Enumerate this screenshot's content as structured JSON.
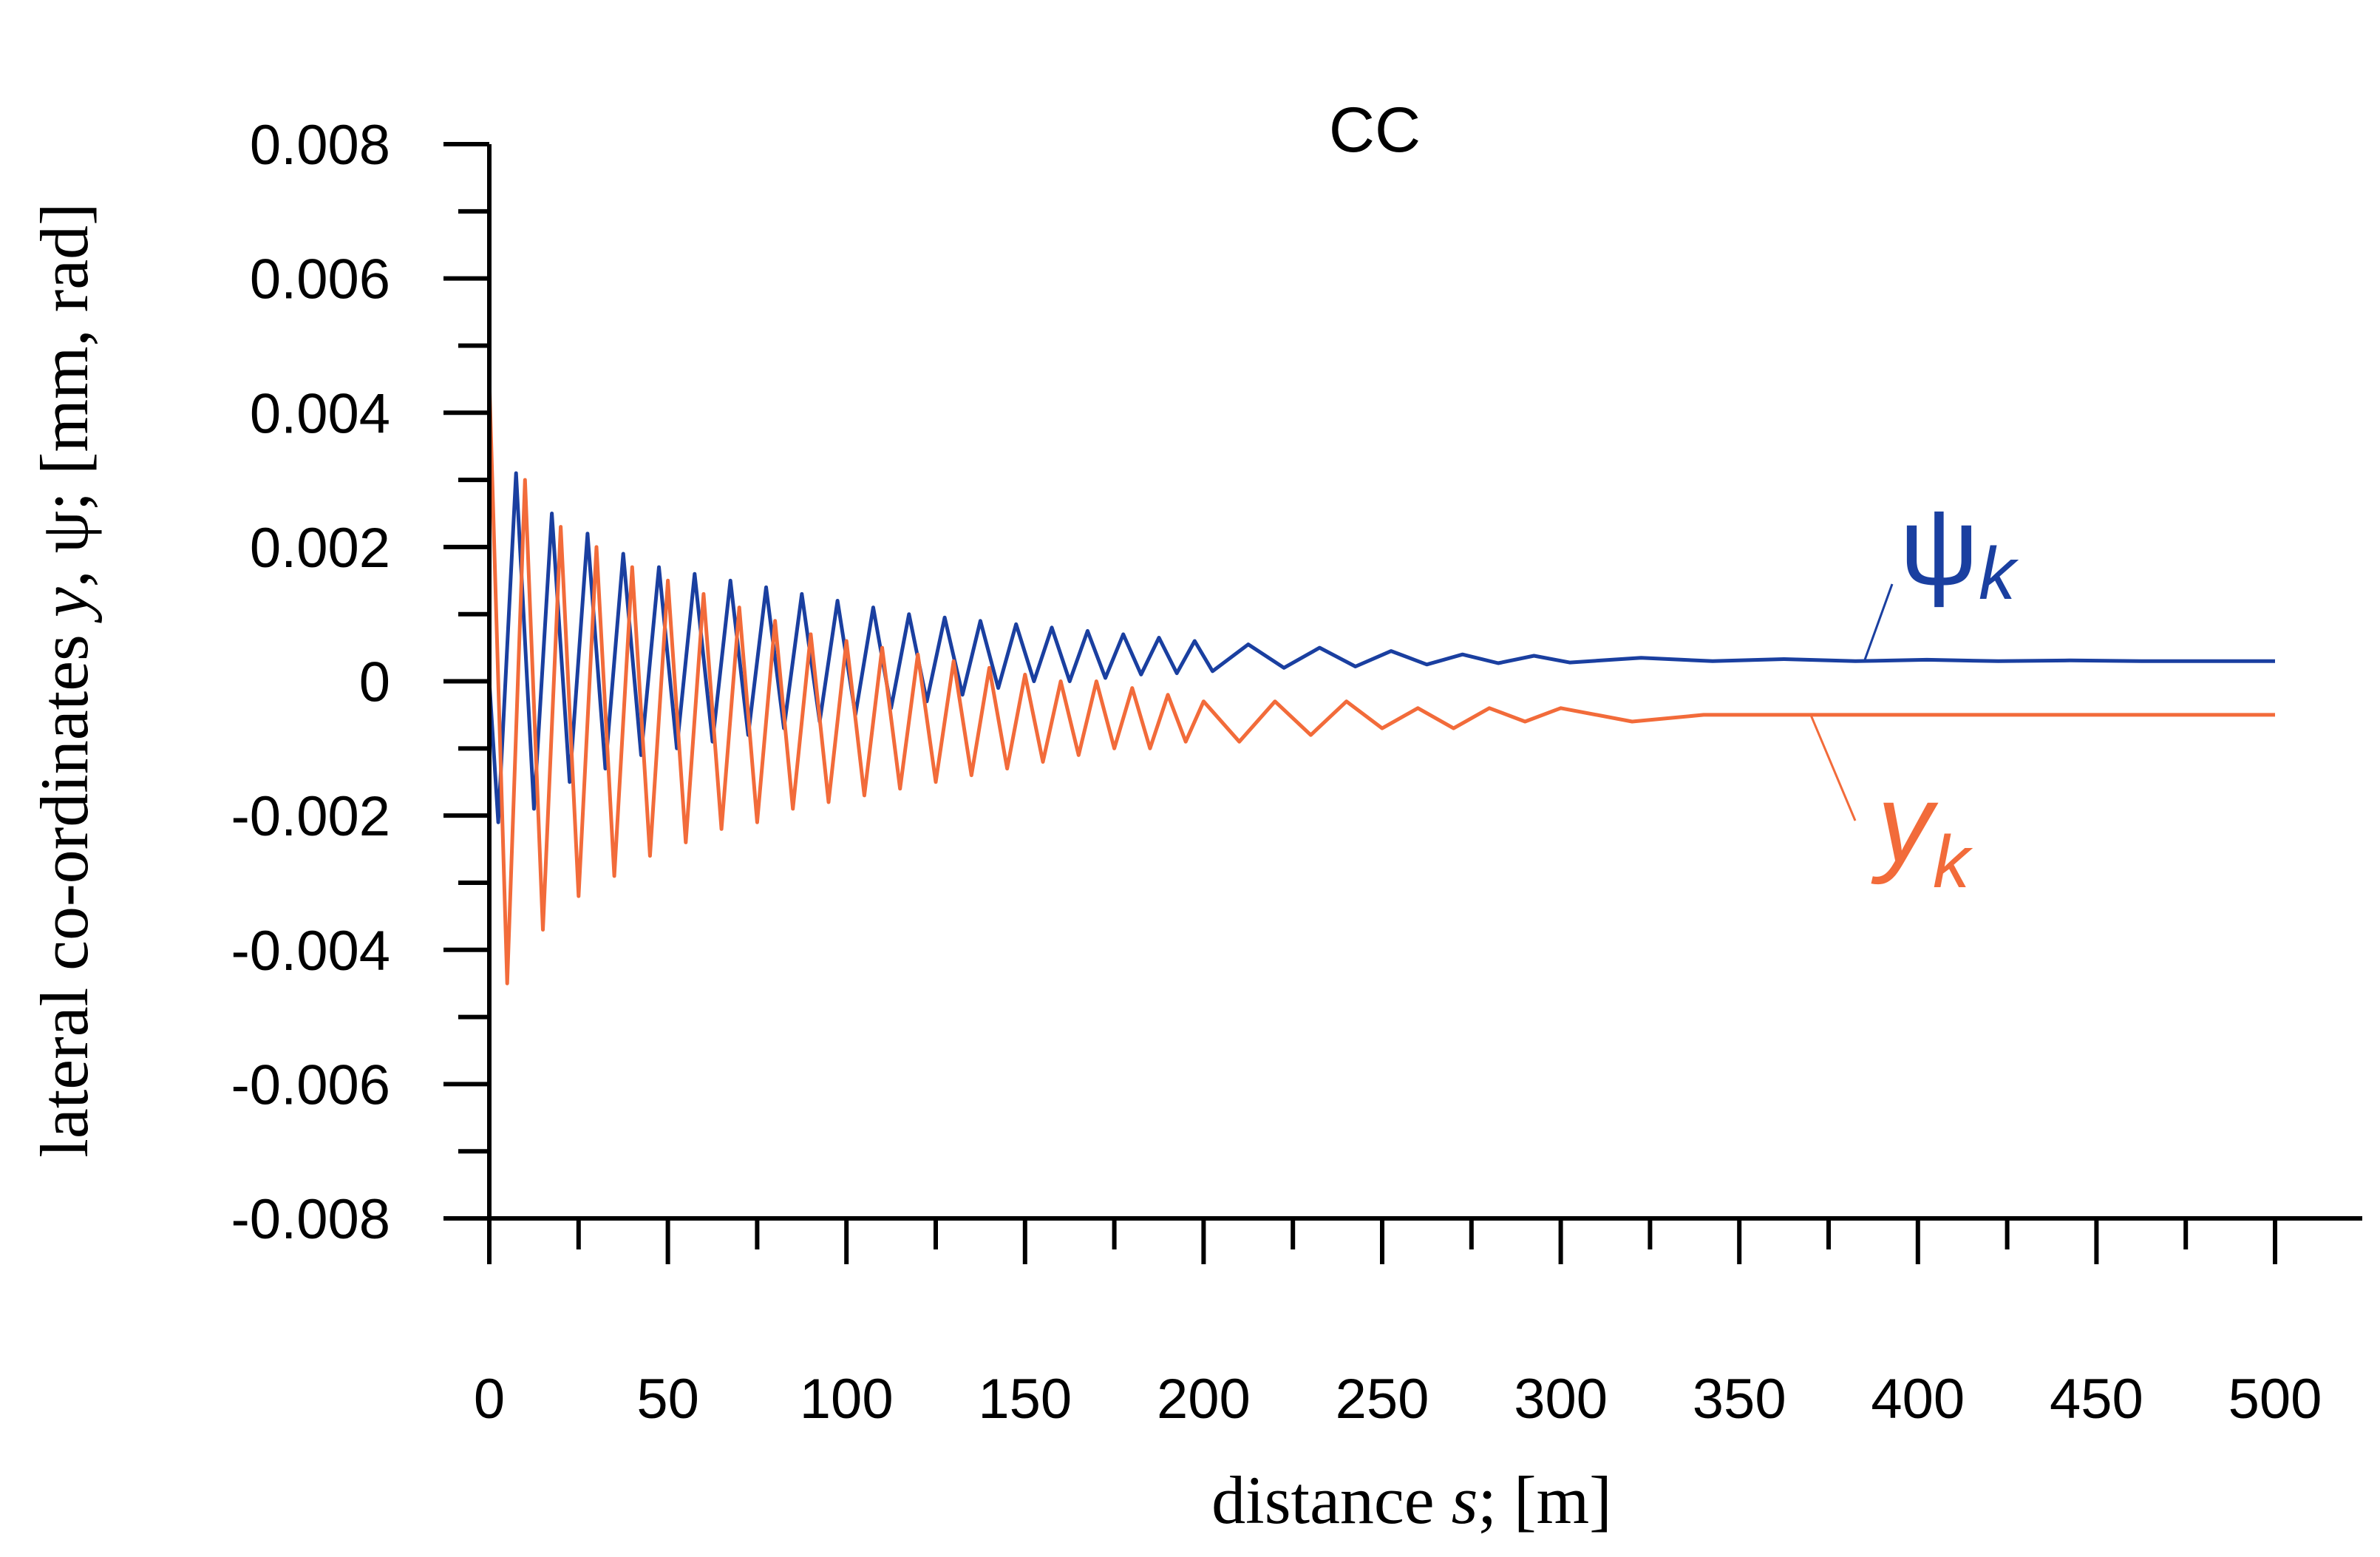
{
  "chart_data": {
    "type": "line",
    "title": "CC",
    "xlabel": {
      "pre": "distance ",
      "var": "s",
      "post": "; [m]"
    },
    "ylabel": {
      "pre": "lateral co-ordinates ",
      "var": "y",
      "post": ", ψ; [mm, rad]"
    },
    "xlim": [
      0,
      500
    ],
    "ylim": [
      -0.008,
      0.008
    ],
    "xticks": [
      "0",
      "50",
      "100",
      "150",
      "200",
      "250",
      "300",
      "350",
      "400",
      "450",
      "500"
    ],
    "yticks": [
      "0.008",
      "0.006",
      "0.004",
      "0.002",
      "0",
      "-0.002",
      "-0.004",
      "-0.006",
      "-0.008"
    ],
    "grid": false,
    "series": [
      {
        "name": "ψ",
        "subscript": "k",
        "color": "#1a3fa0",
        "x": [
          0,
          2.5,
          7.5,
          12.5,
          17.5,
          22.5,
          27.5,
          32.5,
          37.5,
          42.5,
          47.5,
          52.5,
          57.5,
          62.5,
          67.5,
          72.5,
          77.5,
          82.5,
          87.5,
          92.5,
          97.5,
          102.5,
          107.5,
          112.5,
          117.5,
          122.5,
          127.5,
          132.5,
          137.5,
          142.5,
          147.5,
          152.5,
          157.5,
          162.5,
          167.5,
          172.5,
          177.5,
          182.5,
          187.5,
          192.5,
          197.5,
          202.5,
          212.5,
          222.5,
          232.5,
          242.5,
          252.5,
          262.5,
          272.5,
          282.5,
          292.5,
          302.5,
          322.5,
          342.5,
          362.5,
          382.5,
          402.5,
          422.5,
          442.5,
          462.5,
          482.5,
          500
        ],
        "y": [
          0.0,
          -0.0021,
          0.0031,
          -0.0019,
          0.0025,
          -0.0015,
          0.0022,
          -0.0013,
          0.0019,
          -0.0011,
          0.0017,
          -0.001,
          0.0016,
          -0.0009,
          0.0015,
          -0.0008,
          0.0014,
          -0.0007,
          0.0013,
          -0.0006,
          0.0012,
          -0.0005,
          0.0011,
          -0.0004,
          0.001,
          -0.0003,
          0.00095,
          -0.0002,
          0.0009,
          -0.0001,
          0.00085,
          0.0,
          0.0008,
          0.0,
          0.00075,
          5e-05,
          0.0007,
          0.0001,
          0.00065,
          0.00012,
          0.0006,
          0.00015,
          0.00055,
          0.0002,
          0.0005,
          0.00022,
          0.00045,
          0.00025,
          0.0004,
          0.00027,
          0.00038,
          0.00028,
          0.00035,
          0.0003,
          0.00033,
          0.0003,
          0.00032,
          0.0003,
          0.00031,
          0.0003,
          0.0003,
          0.0003
        ]
      },
      {
        "name": "y",
        "subscript": "k",
        "color": "#f26b3a",
        "x": [
          0,
          5,
          10,
          15,
          20,
          25,
          30,
          35,
          40,
          45,
          50,
          55,
          60,
          65,
          70,
          75,
          80,
          85,
          90,
          95,
          100,
          105,
          110,
          115,
          120,
          125,
          130,
          135,
          140,
          145,
          150,
          155,
          160,
          165,
          170,
          175,
          180,
          185,
          190,
          195,
          200,
          210,
          220,
          230,
          240,
          250,
          260,
          270,
          280,
          290,
          300,
          320,
          340,
          360,
          380,
          400,
          420,
          440,
          460,
          480,
          500
        ],
        "y": [
          0.0045,
          -0.0045,
          0.003,
          -0.0037,
          0.0023,
          -0.0032,
          0.002,
          -0.0029,
          0.0017,
          -0.0026,
          0.0015,
          -0.0024,
          0.0013,
          -0.0022,
          0.0011,
          -0.0021,
          0.0009,
          -0.0019,
          0.0007,
          -0.0018,
          0.0006,
          -0.0017,
          0.0005,
          -0.0016,
          0.0004,
          -0.0015,
          0.0003,
          -0.0014,
          0.0002,
          -0.0013,
          0.0001,
          -0.0012,
          0.0,
          -0.0011,
          0.0,
          -0.001,
          -0.0001,
          -0.001,
          -0.0002,
          -0.0009,
          -0.0003,
          -0.0009,
          -0.0003,
          -0.0008,
          -0.0003,
          -0.0007,
          -0.0004,
          -0.0007,
          -0.0004,
          -0.0006,
          -0.0004,
          -0.0006,
          -0.0005,
          -0.0005,
          -0.0005,
          -0.0005,
          -0.0005,
          -0.0005,
          -0.0005,
          -0.0005,
          -0.0005
        ]
      }
    ]
  }
}
